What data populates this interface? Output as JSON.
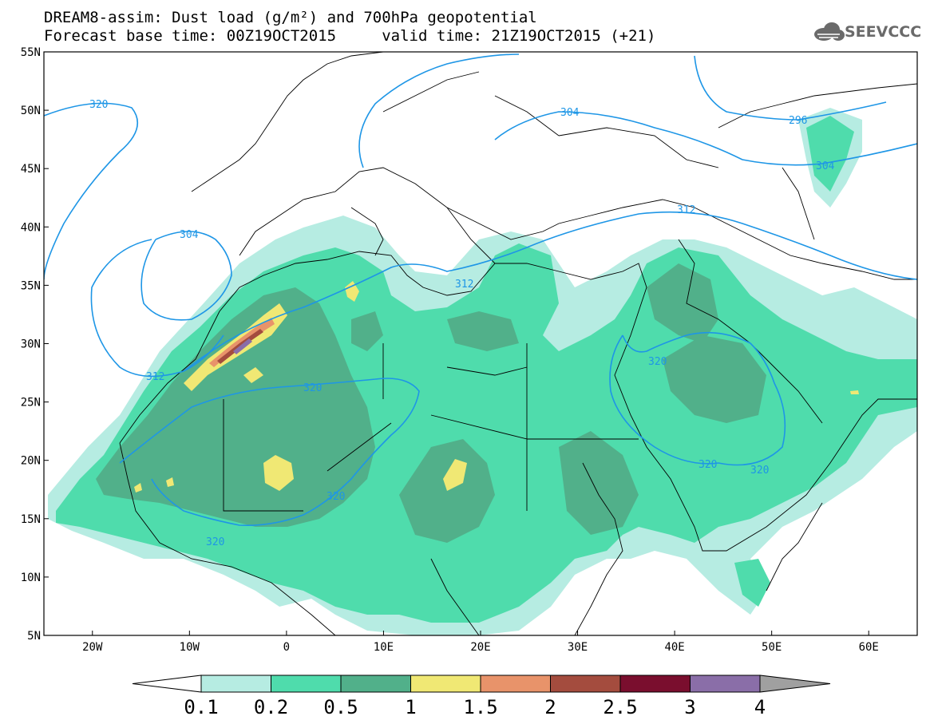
{
  "title": {
    "line1": "DREAM8-assim: Dust load (g/m²) and 700hPa geopotential",
    "line2": "Forecast base time: 00Z19OCT2015     valid time: 21Z19OCT2015 (+21)"
  },
  "logo": {
    "text": "SEEVCCC",
    "icon": "cloud-logo-icon"
  },
  "map": {
    "lon_range": [
      -25,
      65
    ],
    "lat_range": [
      5,
      55
    ],
    "lat_ticks": [
      "55N",
      "50N",
      "45N",
      "40N",
      "35N",
      "30N",
      "25N",
      "20N",
      "15N",
      "10N",
      "5N"
    ],
    "lon_ticks": [
      "20W",
      "10W",
      "0",
      "10E",
      "20E",
      "30E",
      "40E",
      "50E",
      "60E"
    ],
    "contour_color": "#1e96e6",
    "contour_labels": [
      "320",
      "304",
      "296",
      "304",
      "312",
      "304",
      "312",
      "312",
      "320",
      "320",
      "320",
      "320",
      "320",
      "320"
    ]
  },
  "colorbar": {
    "labels": [
      "0.1",
      "0.2",
      "0.5",
      "1",
      "1.5",
      "2",
      "2.5",
      "3",
      "4"
    ],
    "colors": [
      "#ffffff",
      "#b6ece2",
      "#4fdcac",
      "#51b08a",
      "#f0e874",
      "#e8936a",
      "#a44c3e",
      "#7a0e2e",
      "#8a6ea8",
      "#a0a0a0"
    ]
  }
}
